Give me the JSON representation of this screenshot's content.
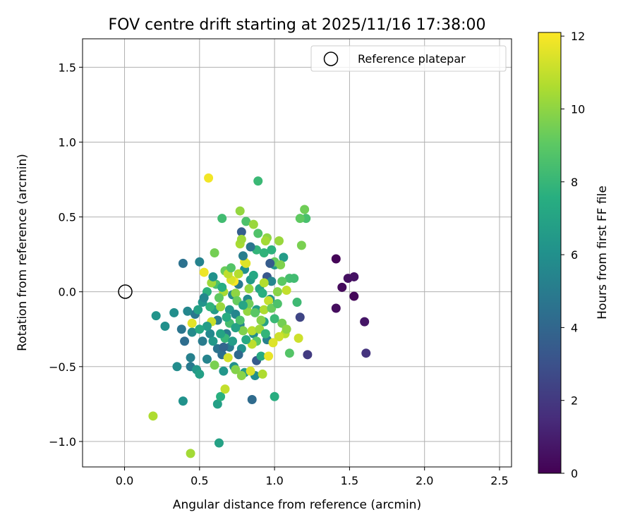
{
  "chart_data": {
    "type": "scatter",
    "title": "FOV centre drift starting at 2025/11/16 17:38:00",
    "xlabel": "Angular distance from reference (arcmin)",
    "ylabel": "Rotation from reference (arcmin)",
    "xlim": [
      -0.28,
      2.58
    ],
    "ylim": [
      -1.17,
      1.69
    ],
    "xticks": [
      0.0,
      0.5,
      1.0,
      1.5,
      2.0,
      2.5
    ],
    "yticks": [
      -1.0,
      -0.5,
      0.0,
      0.5,
      1.0,
      1.5
    ],
    "xtick_labels": [
      "0.0",
      "0.5",
      "1.0",
      "1.5",
      "2.0",
      "2.5"
    ],
    "ytick_labels": [
      "−1.0",
      "−0.5",
      "0.0",
      "0.5",
      "1.0",
      "1.5"
    ],
    "grid": true,
    "legend": {
      "position": "top-right",
      "entries": [
        "Reference platepar"
      ]
    },
    "reference_point": {
      "x": 0.0,
      "y": 0.0,
      "label": "Reference platepar"
    },
    "colorbar": {
      "label": "Hours from first FF file",
      "min": 0,
      "max": 12.1,
      "ticks": [
        0,
        2,
        4,
        6,
        8,
        10,
        12
      ],
      "tick_labels": [
        "0",
        "2",
        "4",
        "6",
        "8",
        "10",
        "12"
      ],
      "colormap": "viridis"
    },
    "points": [
      {
        "x": 1.41,
        "y": 0.22,
        "h": 0.1
      },
      {
        "x": 1.45,
        "y": 0.03,
        "h": 0.3
      },
      {
        "x": 1.49,
        "y": 0.09,
        "h": 0.5
      },
      {
        "x": 1.53,
        "y": 0.1,
        "h": 0.6
      },
      {
        "x": 1.53,
        "y": -0.03,
        "h": 0.2
      },
      {
        "x": 1.41,
        "y": -0.11,
        "h": 0.4
      },
      {
        "x": 1.6,
        "y": -0.2,
        "h": 0.7
      },
      {
        "x": 1.61,
        "y": -0.41,
        "h": 1.8
      },
      {
        "x": 1.22,
        "y": -0.42,
        "h": 2.1
      },
      {
        "x": 1.17,
        "y": -0.17,
        "h": 2.5
      },
      {
        "x": 0.88,
        "y": -0.46,
        "h": 3.4
      },
      {
        "x": 0.95,
        "y": 0.1,
        "h": 3.3
      },
      {
        "x": 0.78,
        "y": 0.4,
        "h": 3.6
      },
      {
        "x": 0.85,
        "y": -0.72,
        "h": 4.2
      },
      {
        "x": 0.39,
        "y": 0.19,
        "h": 4.5
      },
      {
        "x": 0.5,
        "y": 0.2,
        "h": 5.3
      },
      {
        "x": 0.47,
        "y": -0.15,
        "h": 4.8
      },
      {
        "x": 0.52,
        "y": -0.33,
        "h": 5.0
      },
      {
        "x": 0.4,
        "y": -0.33,
        "h": 4.3
      },
      {
        "x": 0.44,
        "y": -0.5,
        "h": 4.9
      },
      {
        "x": 0.42,
        "y": -0.13,
        "h": 5.5
      },
      {
        "x": 0.38,
        "y": -0.25,
        "h": 4.7
      },
      {
        "x": 0.35,
        "y": -0.5,
        "h": 5.8
      },
      {
        "x": 0.44,
        "y": -0.44,
        "h": 5.2
      },
      {
        "x": 0.33,
        "y": -0.14,
        "h": 5.9
      },
      {
        "x": 0.27,
        "y": -0.23,
        "h": 6.0
      },
      {
        "x": 0.21,
        "y": -0.16,
        "h": 6.2
      },
      {
        "x": 0.39,
        "y": -0.73,
        "h": 6.1
      },
      {
        "x": 0.48,
        "y": -0.52,
        "h": 6.4
      },
      {
        "x": 0.5,
        "y": -0.55,
        "h": 6.8
      },
      {
        "x": 0.55,
        "y": -0.45,
        "h": 5.4
      },
      {
        "x": 0.57,
        "y": -0.28,
        "h": 5.6
      },
      {
        "x": 0.62,
        "y": -0.19,
        "h": 5.1
      },
      {
        "x": 0.6,
        "y": -0.12,
        "h": 6.6
      },
      {
        "x": 0.62,
        "y": -0.38,
        "h": 4.6
      },
      {
        "x": 0.65,
        "y": -0.42,
        "h": 4.4
      },
      {
        "x": 0.68,
        "y": -0.28,
        "h": 5.0
      },
      {
        "x": 0.7,
        "y": -0.12,
        "h": 6.3
      },
      {
        "x": 0.72,
        "y": -0.02,
        "h": 5.7
      },
      {
        "x": 0.74,
        "y": -0.15,
        "h": 5.5
      },
      {
        "x": 0.76,
        "y": 0.05,
        "h": 4.9
      },
      {
        "x": 0.77,
        "y": -0.22,
        "h": 5.3
      },
      {
        "x": 0.8,
        "y": 0.15,
        "h": 6.0
      },
      {
        "x": 0.82,
        "y": -0.05,
        "h": 5.8
      },
      {
        "x": 0.84,
        "y": 0.08,
        "h": 6.5
      },
      {
        "x": 0.86,
        "y": -0.28,
        "h": 5.9
      },
      {
        "x": 0.88,
        "y": -0.12,
        "h": 6.7
      },
      {
        "x": 0.9,
        "y": 0.02,
        "h": 7.0
      },
      {
        "x": 0.93,
        "y": -0.2,
        "h": 6.9
      },
      {
        "x": 0.95,
        "y": -0.32,
        "h": 5.2
      },
      {
        "x": 0.97,
        "y": -0.05,
        "h": 6.2
      },
      {
        "x": 1.0,
        "y": 0.18,
        "h": 6.4
      },
      {
        "x": 1.06,
        "y": 0.23,
        "h": 6.6
      },
      {
        "x": 0.78,
        "y": -0.38,
        "h": 6.1
      },
      {
        "x": 0.7,
        "y": -0.37,
        "h": 5.0
      },
      {
        "x": 0.66,
        "y": -0.53,
        "h": 6.3
      },
      {
        "x": 0.62,
        "y": -0.75,
        "h": 6.8
      },
      {
        "x": 0.63,
        "y": -1.01,
        "h": 6.9
      },
      {
        "x": 0.87,
        "y": -0.56,
        "h": 5.9
      },
      {
        "x": 0.8,
        "y": -0.54,
        "h": 6.5
      },
      {
        "x": 0.73,
        "y": -0.5,
        "h": 6.0
      },
      {
        "x": 0.98,
        "y": 0.07,
        "h": 5.5
      },
      {
        "x": 0.91,
        "y": -0.43,
        "h": 7.3
      },
      {
        "x": 1.0,
        "y": -0.7,
        "h": 7.5
      },
      {
        "x": 0.57,
        "y": -0.1,
        "h": 7.8
      },
      {
        "x": 0.52,
        "y": -0.07,
        "h": 6.2
      },
      {
        "x": 0.45,
        "y": -0.27,
        "h": 5.7
      },
      {
        "x": 0.55,
        "y": 0.0,
        "h": 7.7
      },
      {
        "x": 0.64,
        "y": -0.7,
        "h": 7.6
      },
      {
        "x": 0.89,
        "y": 0.74,
        "h": 8.1
      },
      {
        "x": 0.65,
        "y": 0.49,
        "h": 8.3
      },
      {
        "x": 0.88,
        "y": 0.28,
        "h": 7.9
      },
      {
        "x": 0.89,
        "y": 0.39,
        "h": 8.7
      },
      {
        "x": 0.93,
        "y": 0.26,
        "h": 7.8
      },
      {
        "x": 0.81,
        "y": 0.47,
        "h": 8.6
      },
      {
        "x": 1.1,
        "y": 0.09,
        "h": 8.4
      },
      {
        "x": 1.15,
        "y": -0.07,
        "h": 8.2
      },
      {
        "x": 1.1,
        "y": -0.41,
        "h": 8.8
      },
      {
        "x": 1.21,
        "y": 0.49,
        "h": 8.5
      },
      {
        "x": 1.17,
        "y": 0.49,
        "h": 9.1
      },
      {
        "x": 1.2,
        "y": 0.55,
        "h": 9.4
      },
      {
        "x": 1.18,
        "y": 0.31,
        "h": 9.6
      },
      {
        "x": 0.67,
        "y": 0.14,
        "h": 9.3
      },
      {
        "x": 0.6,
        "y": 0.26,
        "h": 9.5
      },
      {
        "x": 0.77,
        "y": 0.54,
        "h": 10.1
      },
      {
        "x": 0.86,
        "y": 0.45,
        "h": 10.2
      },
      {
        "x": 0.77,
        "y": 0.32,
        "h": 10.5
      },
      {
        "x": 0.78,
        "y": 0.35,
        "h": 10.3
      },
      {
        "x": 0.95,
        "y": 0.36,
        "h": 10.0
      },
      {
        "x": 0.94,
        "y": 0.34,
        "h": 10.4
      },
      {
        "x": 1.03,
        "y": 0.34,
        "h": 10.2
      },
      {
        "x": 1.0,
        "y": 0.2,
        "h": 9.2
      },
      {
        "x": 1.04,
        "y": 0.18,
        "h": 9.7
      },
      {
        "x": 1.05,
        "y": 0.07,
        "h": 9.0
      },
      {
        "x": 1.08,
        "y": 0.01,
        "h": 11.0
      },
      {
        "x": 1.05,
        "y": -0.21,
        "h": 9.5
      },
      {
        "x": 1.07,
        "y": -0.28,
        "h": 10.8
      },
      {
        "x": 1.03,
        "y": -0.3,
        "h": 11.2
      },
      {
        "x": 0.99,
        "y": -0.34,
        "h": 11.5
      },
      {
        "x": 0.92,
        "y": -0.55,
        "h": 10.6
      },
      {
        "x": 0.84,
        "y": -0.53,
        "h": 11.4
      },
      {
        "x": 0.78,
        "y": -0.56,
        "h": 9.9
      },
      {
        "x": 0.74,
        "y": -0.52,
        "h": 9.8
      },
      {
        "x": 0.67,
        "y": -0.65,
        "h": 11.0
      },
      {
        "x": 0.69,
        "y": -0.44,
        "h": 11.3
      },
      {
        "x": 0.6,
        "y": -0.49,
        "h": 9.6
      },
      {
        "x": 0.58,
        "y": -0.2,
        "h": 11.1
      },
      {
        "x": 0.53,
        "y": 0.13,
        "h": 11.8
      },
      {
        "x": 0.56,
        "y": 0.76,
        "h": 11.9
      },
      {
        "x": 0.45,
        "y": -0.21,
        "h": 11.6
      },
      {
        "x": 0.44,
        "y": -1.08,
        "h": 10.4
      },
      {
        "x": 0.19,
        "y": -0.83,
        "h": 10.6
      },
      {
        "x": 0.73,
        "y": 0.07,
        "h": 12.0
      },
      {
        "x": 0.8,
        "y": 0.2,
        "h": 11.9
      },
      {
        "x": 0.81,
        "y": 0.19,
        "h": 11.5
      },
      {
        "x": 0.71,
        "y": 0.08,
        "h": 11.4
      },
      {
        "x": 0.69,
        "y": 0.12,
        "h": 10.9
      },
      {
        "x": 0.76,
        "y": 0.12,
        "h": 10.7
      },
      {
        "x": 0.74,
        "y": -0.01,
        "h": 10.0
      },
      {
        "x": 0.66,
        "y": 0.0,
        "h": 10.5
      },
      {
        "x": 0.64,
        "y": -0.1,
        "h": 10.2
      },
      {
        "x": 0.82,
        "y": -0.13,
        "h": 10.1
      },
      {
        "x": 0.85,
        "y": -0.26,
        "h": 10.8
      },
      {
        "x": 0.83,
        "y": -0.08,
        "h": 9.4
      },
      {
        "x": 0.87,
        "y": -0.14,
        "h": 8.9
      },
      {
        "x": 0.91,
        "y": -0.19,
        "h": 9.8
      },
      {
        "x": 0.93,
        "y": -0.12,
        "h": 10.6
      },
      {
        "x": 0.96,
        "y": -0.06,
        "h": 11.0
      },
      {
        "x": 0.98,
        "y": -0.11,
        "h": 9.3
      },
      {
        "x": 0.9,
        "y": -0.25,
        "h": 10.3
      },
      {
        "x": 0.88,
        "y": -0.33,
        "h": 9.0
      },
      {
        "x": 0.85,
        "y": -0.35,
        "h": 10.9
      },
      {
        "x": 0.79,
        "y": -0.26,
        "h": 9.7
      },
      {
        "x": 0.77,
        "y": -0.19,
        "h": 8.6
      },
      {
        "x": 0.75,
        "y": -0.06,
        "h": 9.2
      },
      {
        "x": 0.7,
        "y": -0.21,
        "h": 8.4
      },
      {
        "x": 0.67,
        "y": -0.31,
        "h": 8.0
      },
      {
        "x": 0.63,
        "y": -0.04,
        "h": 9.1
      },
      {
        "x": 0.61,
        "y": 0.05,
        "h": 8.5
      },
      {
        "x": 0.58,
        "y": 0.06,
        "h": 10.3
      },
      {
        "x": 0.71,
        "y": 0.16,
        "h": 8.8
      },
      {
        "x": 0.83,
        "y": 0.02,
        "h": 10.1
      },
      {
        "x": 0.93,
        "y": 0.06,
        "h": 10.7
      },
      {
        "x": 1.02,
        "y": 0.0,
        "h": 9.9
      },
      {
        "x": 1.08,
        "y": -0.25,
        "h": 10.0
      },
      {
        "x": 1.16,
        "y": -0.31,
        "h": 11.2
      },
      {
        "x": 0.96,
        "y": -0.43,
        "h": 11.7
      },
      {
        "x": 1.13,
        "y": 0.09,
        "h": 8.3
      },
      {
        "x": 0.68,
        "y": -0.17,
        "h": 7.4
      },
      {
        "x": 0.74,
        "y": -0.24,
        "h": 6.9
      },
      {
        "x": 0.86,
        "y": 0.11,
        "h": 7.2
      },
      {
        "x": 0.92,
        "y": -0.01,
        "h": 7.6
      },
      {
        "x": 0.79,
        "y": -0.09,
        "h": 7.1
      },
      {
        "x": 0.81,
        "y": -0.32,
        "h": 7.3
      },
      {
        "x": 0.72,
        "y": -0.33,
        "h": 6.7
      },
      {
        "x": 0.64,
        "y": -0.28,
        "h": 7.0
      },
      {
        "x": 0.59,
        "y": -0.33,
        "h": 6.4
      },
      {
        "x": 0.55,
        "y": -0.23,
        "h": 6.6
      },
      {
        "x": 0.5,
        "y": -0.25,
        "h": 7.2
      },
      {
        "x": 0.49,
        "y": -0.12,
        "h": 6.9
      },
      {
        "x": 0.53,
        "y": -0.04,
        "h": 5.6
      },
      {
        "x": 0.59,
        "y": 0.1,
        "h": 6.1
      },
      {
        "x": 0.65,
        "y": 0.03,
        "h": 7.5
      },
      {
        "x": 0.94,
        "y": -0.28,
        "h": 7.9
      },
      {
        "x": 1.0,
        "y": -0.18,
        "h": 8.1
      },
      {
        "x": 1.02,
        "y": -0.08,
        "h": 8.6
      },
      {
        "x": 0.98,
        "y": 0.28,
        "h": 7.7
      },
      {
        "x": 0.84,
        "y": 0.3,
        "h": 4.7
      },
      {
        "x": 0.79,
        "y": 0.24,
        "h": 5.1
      },
      {
        "x": 0.76,
        "y": -0.42,
        "h": 4.1
      },
      {
        "x": 0.66,
        "y": -0.37,
        "h": 3.9
      },
      {
        "x": 0.97,
        "y": 0.19,
        "h": 3.5
      }
    ]
  }
}
